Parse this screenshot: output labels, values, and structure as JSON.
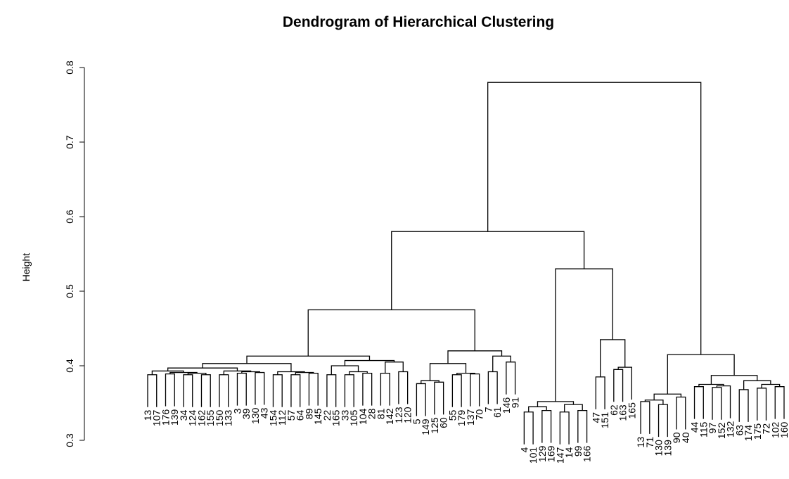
{
  "chart_data": {
    "type": "dendrogram",
    "title": "Dendrogram of Hierarchical Clustering",
    "y_label": "Height",
    "ylim": [
      0.3,
      0.8
    ],
    "yticks": [
      0.3,
      0.4,
      0.5,
      0.6,
      0.7,
      0.8
    ],
    "color": "#000000",
    "tree": {
      "height": 0.78,
      "children": [
        {
          "height": 0.58,
          "children": [
            {
              "height": 0.475,
              "children": [
                {
                  "height": 0.413,
                  "children": [
                    {
                      "height": 0.403,
                      "children": [
                        {
                          "height": 0.397,
                          "children": [
                            {
                              "height": 0.393,
                              "children": [
                                {
                                  "height": 0.388,
                                  "children": [
                                    {
                                      "label": "13"
                                    },
                                    {
                                      "label": "107"
                                    }
                                  ]
                                },
                                {
                                  "height": 0.391,
                                  "children": [
                                    {
                                      "height": 0.389,
                                      "children": [
                                        {
                                          "label": "176"
                                        },
                                        {
                                          "label": "139"
                                        }
                                      ]
                                    },
                                    {
                                      "height": 0.39,
                                      "children": [
                                        {
                                          "height": 0.388,
                                          "children": [
                                            {
                                              "label": "34"
                                            },
                                            {
                                              "label": "124"
                                            }
                                          ]
                                        },
                                        {
                                          "height": 0.388,
                                          "children": [
                                            {
                                              "label": "162"
                                            },
                                            {
                                              "label": "155"
                                            }
                                          ]
                                        }
                                      ]
                                    }
                                  ]
                                }
                              ]
                            },
                            {
                              "height": 0.393,
                              "children": [
                                {
                                  "height": 0.388,
                                  "children": [
                                    {
                                      "label": "150"
                                    },
                                    {
                                      "label": "133"
                                    }
                                  ]
                                },
                                {
                                  "height": 0.392,
                                  "children": [
                                    {
                                      "height": 0.39,
                                      "children": [
                                        {
                                          "label": "3"
                                        },
                                        {
                                          "label": "39"
                                        }
                                      ]
                                    },
                                    {
                                      "height": 0.391,
                                      "children": [
                                        {
                                          "label": "130"
                                        },
                                        {
                                          "label": "43"
                                        }
                                      ]
                                    }
                                  ]
                                }
                              ]
                            }
                          ]
                        },
                        {
                          "height": 0.392,
                          "children": [
                            {
                              "height": 0.388,
                              "children": [
                                {
                                  "label": "154"
                                },
                                {
                                  "label": "112"
                                }
                              ]
                            },
                            {
                              "height": 0.391,
                              "children": [
                                {
                                  "height": 0.388,
                                  "children": [
                                    {
                                      "label": "57"
                                    },
                                    {
                                      "label": "64"
                                    }
                                  ]
                                },
                                {
                                  "height": 0.39,
                                  "children": [
                                    {
                                      "label": "89"
                                    },
                                    {
                                      "label": "145"
                                    }
                                  ]
                                }
                              ]
                            }
                          ]
                        }
                      ]
                    },
                    {
                      "height": 0.407,
                      "children": [
                        {
                          "height": 0.4,
                          "children": [
                            {
                              "height": 0.388,
                              "children": [
                                {
                                  "label": "22"
                                },
                                {
                                  "label": "165"
                                }
                              ]
                            },
                            {
                              "height": 0.392,
                              "children": [
                                {
                                  "height": 0.388,
                                  "children": [
                                    {
                                      "label": "33"
                                    },
                                    {
                                      "label": "105"
                                    }
                                  ]
                                },
                                {
                                  "height": 0.39,
                                  "children": [
                                    {
                                      "label": "104"
                                    },
                                    {
                                      "label": "28"
                                    }
                                  ]
                                }
                              ]
                            }
                          ]
                        },
                        {
                          "height": 0.405,
                          "children": [
                            {
                              "height": 0.39,
                              "children": [
                                {
                                  "label": "81"
                                },
                                {
                                  "label": "142"
                                }
                              ]
                            },
                            {
                              "height": 0.392,
                              "children": [
                                {
                                  "label": "123"
                                },
                                {
                                  "label": "120"
                                }
                              ]
                            }
                          ]
                        }
                      ]
                    }
                  ]
                },
                {
                  "height": 0.42,
                  "children": [
                    {
                      "height": 0.403,
                      "children": [
                        {
                          "height": 0.38,
                          "children": [
                            {
                              "height": 0.376,
                              "children": [
                                {
                                  "label": "5"
                                },
                                {
                                  "label": "149"
                                }
                              ]
                            },
                            {
                              "height": 0.378,
                              "children": [
                                {
                                  "label": "125"
                                },
                                {
                                  "label": "60"
                                }
                              ]
                            }
                          ]
                        },
                        {
                          "height": 0.39,
                          "children": [
                            {
                              "height": 0.388,
                              "children": [
                                {
                                  "label": "55"
                                },
                                {
                                  "label": "179"
                                }
                              ]
                            },
                            {
                              "height": 0.389,
                              "children": [
                                {
                                  "label": "137"
                                },
                                {
                                  "label": "70"
                                }
                              ]
                            }
                          ]
                        }
                      ]
                    },
                    {
                      "height": 0.413,
                      "children": [
                        {
                          "height": 0.392,
                          "children": [
                            {
                              "label": "7"
                            },
                            {
                              "label": "61"
                            }
                          ]
                        },
                        {
                          "height": 0.405,
                          "children": [
                            {
                              "label": "146"
                            },
                            {
                              "label": "91"
                            }
                          ]
                        }
                      ]
                    }
                  ]
                }
              ]
            },
            {
              "height": 0.53,
              "children": [
                {
                  "height": 0.352,
                  "children": [
                    {
                      "height": 0.345,
                      "children": [
                        {
                          "height": 0.338,
                          "children": [
                            {
                              "label": "4"
                            },
                            {
                              "label": "101"
                            }
                          ]
                        },
                        {
                          "height": 0.34,
                          "children": [
                            {
                              "label": "129"
                            },
                            {
                              "label": "169"
                            }
                          ]
                        }
                      ]
                    },
                    {
                      "height": 0.348,
                      "children": [
                        {
                          "height": 0.338,
                          "children": [
                            {
                              "label": "147"
                            },
                            {
                              "label": "14"
                            }
                          ]
                        },
                        {
                          "height": 0.34,
                          "children": [
                            {
                              "label": "99"
                            },
                            {
                              "label": "166"
                            }
                          ]
                        }
                      ]
                    }
                  ]
                },
                {
                  "height": 0.435,
                  "children": [
                    {
                      "height": 0.385,
                      "children": [
                        {
                          "label": "47"
                        },
                        {
                          "label": "151"
                        }
                      ]
                    },
                    {
                      "height": 0.398,
                      "children": [
                        {
                          "height": 0.395,
                          "children": [
                            {
                              "label": "62"
                            },
                            {
                              "label": "163"
                            }
                          ]
                        },
                        {
                          "label": "165"
                        }
                      ]
                    }
                  ]
                }
              ]
            }
          ]
        },
        {
          "height": 0.415,
          "children": [
            {
              "height": 0.362,
              "children": [
                {
                  "height": 0.354,
                  "children": [
                    {
                      "height": 0.352,
                      "children": [
                        {
                          "label": "13"
                        },
                        {
                          "label": "71"
                        }
                      ]
                    },
                    {
                      "height": 0.348,
                      "children": [
                        {
                          "label": "130"
                        },
                        {
                          "label": "139"
                        }
                      ]
                    }
                  ]
                },
                {
                  "height": 0.358,
                  "children": [
                    {
                      "label": "90"
                    },
                    {
                      "label": "40"
                    }
                  ]
                }
              ]
            },
            {
              "height": 0.387,
              "children": [
                {
                  "height": 0.375,
                  "children": [
                    {
                      "height": 0.372,
                      "children": [
                        {
                          "label": "44"
                        },
                        {
                          "label": "115"
                        }
                      ]
                    },
                    {
                      "height": 0.373,
                      "children": [
                        {
                          "height": 0.371,
                          "children": [
                            {
                              "label": "97"
                            },
                            {
                              "label": "152"
                            }
                          ]
                        },
                        {
                          "label": "132"
                        }
                      ]
                    }
                  ]
                },
                {
                  "height": 0.38,
                  "children": [
                    {
                      "height": 0.368,
                      "children": [
                        {
                          "label": "63"
                        },
                        {
                          "label": "174"
                        }
                      ]
                    },
                    {
                      "height": 0.375,
                      "children": [
                        {
                          "height": 0.37,
                          "children": [
                            {
                              "label": "175"
                            },
                            {
                              "label": "72"
                            }
                          ]
                        },
                        {
                          "height": 0.372,
                          "children": [
                            {
                              "label": "102"
                            },
                            {
                              "label": "160"
                            }
                          ]
                        }
                      ]
                    }
                  ]
                }
              ]
            }
          ]
        }
      ]
    }
  }
}
